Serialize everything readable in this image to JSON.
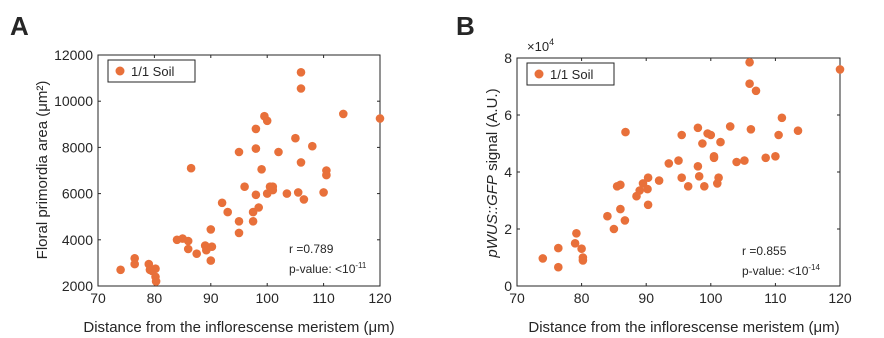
{
  "accent_color": "#e8703a",
  "chart_data": [
    {
      "type": "scatter",
      "panel_label": "A",
      "xlabel": "Distance from the inflorescense meristem (μm)",
      "ylabel": "Floral primordia area (μm²)",
      "xlim": [
        70,
        120
      ],
      "ylim": [
        2000,
        12000
      ],
      "x_ticks": [
        "70",
        "80",
        "90",
        "100",
        "110",
        "120"
      ],
      "y_ticks": [
        "2000",
        "4000",
        "6000",
        "8000",
        "10000",
        "12000"
      ],
      "y_exponent": "",
      "legend": "1/1 Soil",
      "legend_position": "top-left",
      "annotation_r": "r =0.789",
      "annotation_p": "p-value: <10",
      "annotation_p_exp": "-11",
      "series": [
        {
          "name": "1/1 Soil",
          "color": "#e8703a",
          "points": [
            [
              74,
              2700
            ],
            [
              76.5,
              3200
            ],
            [
              76.5,
              2950
            ],
            [
              79,
              2950
            ],
            [
              79.2,
              2700
            ],
            [
              79.6,
              2650
            ],
            [
              80.2,
              2750
            ],
            [
              80.2,
              2400
            ],
            [
              80.3,
              2200
            ],
            [
              84,
              4000
            ],
            [
              85,
              4050
            ],
            [
              86,
              3600
            ],
            [
              86,
              3950
            ],
            [
              86.5,
              7100
            ],
            [
              87.5,
              3400
            ],
            [
              89,
              3750
            ],
            [
              89.2,
              3550
            ],
            [
              90,
              3100
            ],
            [
              90,
              4450
            ],
            [
              90.2,
              3700
            ],
            [
              92,
              5600
            ],
            [
              93,
              5200
            ],
            [
              95,
              4300
            ],
            [
              95,
              7800
            ],
            [
              95,
              4800
            ],
            [
              96,
              6300
            ],
            [
              97.5,
              4800
            ],
            [
              97.5,
              5200
            ],
            [
              98,
              7950
            ],
            [
              98,
              8800
            ],
            [
              98,
              5950
            ],
            [
              98.5,
              5400
            ],
            [
              99,
              7050
            ],
            [
              99.5,
              9350
            ],
            [
              100,
              9150
            ],
            [
              100,
              6000
            ],
            [
              100.5,
              6300
            ],
            [
              101,
              6150
            ],
            [
              101,
              6300
            ],
            [
              102,
              7800
            ],
            [
              103.5,
              6000
            ],
            [
              105,
              8400
            ],
            [
              105.5,
              6050
            ],
            [
              106,
              11250
            ],
            [
              106,
              10550
            ],
            [
              106,
              7350
            ],
            [
              106.5,
              5750
            ],
            [
              108,
              8050
            ],
            [
              110,
              6050
            ],
            [
              110.5,
              7000
            ],
            [
              110.5,
              6800
            ],
            [
              113.5,
              9450
            ],
            [
              120,
              9250
            ]
          ]
        }
      ]
    },
    {
      "type": "scatter",
      "panel_label": "B",
      "xlabel": "Distance from the inflorescense meristem (μm)",
      "ylabel_italic": "pWUS::GFP",
      "ylabel_rest": " signal (A.U.)",
      "xlim": [
        70,
        120
      ],
      "ylim": [
        0,
        80000
      ],
      "x_ticks": [
        "70",
        "80",
        "90",
        "100",
        "110",
        "120"
      ],
      "y_ticks": [
        "0",
        "2",
        "4",
        "6",
        "8"
      ],
      "y_exponent_base": "×10",
      "y_exponent_power": "4",
      "legend": "1/1 Soil",
      "legend_position": "top-left",
      "annotation_r": "r =0.855",
      "annotation_p": "p-value: <10",
      "annotation_p_exp": "-14",
      "series": [
        {
          "name": "1/1 Soil",
          "color": "#e8703a",
          "points": [
            [
              74,
              9700
            ],
            [
              76.4,
              13300
            ],
            [
              76.4,
              6600
            ],
            [
              79,
              15000
            ],
            [
              79.2,
              18500
            ],
            [
              80,
              13100
            ],
            [
              80.2,
              10000
            ],
            [
              80.2,
              9000
            ],
            [
              84,
              24500
            ],
            [
              85,
              20000
            ],
            [
              85.5,
              35000
            ],
            [
              86,
              35500
            ],
            [
              86,
              27000
            ],
            [
              86.7,
              23000
            ],
            [
              86.8,
              54000
            ],
            [
              88.5,
              31500
            ],
            [
              89,
              33500
            ],
            [
              89.5,
              36000
            ],
            [
              90.2,
              34000
            ],
            [
              90.3,
              38000
            ],
            [
              90.3,
              28500
            ],
            [
              92,
              37000
            ],
            [
              93.5,
              43000
            ],
            [
              95,
              44000
            ],
            [
              95.5,
              38000
            ],
            [
              95.5,
              53000
            ],
            [
              96.5,
              35000
            ],
            [
              98,
              55500
            ],
            [
              98,
              42000
            ],
            [
              98.2,
              38500
            ],
            [
              98.7,
              50000
            ],
            [
              99,
              35000
            ],
            [
              99.5,
              53500
            ],
            [
              100,
              53000
            ],
            [
              100.5,
              45500
            ],
            [
              100.5,
              45000
            ],
            [
              101,
              36000
            ],
            [
              101.2,
              38000
            ],
            [
              101.5,
              50500
            ],
            [
              103,
              56000
            ],
            [
              104,
              43500
            ],
            [
              105.2,
              44000
            ],
            [
              106,
              78500
            ],
            [
              106,
              71000
            ],
            [
              106.2,
              55000
            ],
            [
              107,
              68500
            ],
            [
              108.5,
              45000
            ],
            [
              110,
              45500
            ],
            [
              110.5,
              53000
            ],
            [
              111,
              59000
            ],
            [
              113.5,
              54500
            ],
            [
              120,
              76000
            ]
          ]
        }
      ]
    }
  ]
}
